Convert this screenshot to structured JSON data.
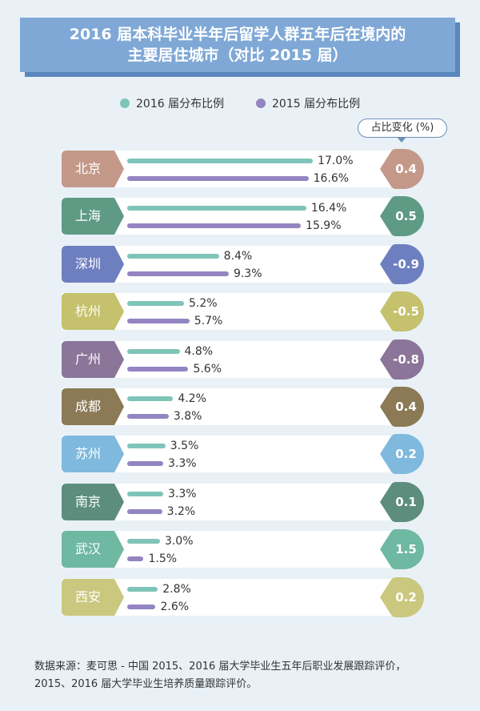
{
  "title": {
    "line1": "2016 届本科毕业半年后留学人群五年后在境内的",
    "line2": "主要居住城市（对比 2015 届）"
  },
  "change_header": "占比变化 (%)",
  "source": {
    "line1": "数据来源：麦可思 - 中国 2015、2016 届大学毕业生五年后职业发展跟踪评价，",
    "line2": "2015、2016 届大学毕业生培养质量跟踪评价。"
  },
  "colors": {
    "series_2016": "#7fc4b8",
    "series_2015": "#9385c1"
  },
  "chart_data": {
    "type": "bar",
    "orientation": "horizontal",
    "categories": [
      "北京",
      "上海",
      "深圳",
      "杭州",
      "广州",
      "成都",
      "苏州",
      "南京",
      "武汉",
      "西安"
    ],
    "series": [
      {
        "name": "2016 届分布比例",
        "values": [
          17.0,
          16.4,
          8.4,
          5.2,
          4.8,
          4.2,
          3.5,
          3.3,
          3.0,
          2.8
        ],
        "labels": [
          "17.0%",
          "16.4%",
          "8.4%",
          "5.2%",
          "4.8%",
          "4.2%",
          "3.5%",
          "3.3%",
          "3.0%",
          "2.8%"
        ]
      },
      {
        "name": "2015 届分布比例",
        "values": [
          16.6,
          15.9,
          9.3,
          5.7,
          5.6,
          3.8,
          3.3,
          3.2,
          1.5,
          2.6
        ],
        "labels": [
          "16.6%",
          "15.9%",
          "9.3%",
          "5.7%",
          "5.6%",
          "3.8%",
          "3.3%",
          "3.2%",
          "1.5%",
          "2.6%"
        ]
      }
    ],
    "changes": [
      "0.4",
      "0.5",
      "-0.9",
      "-0.5",
      "-0.8",
      "0.4",
      "0.2",
      "0.1",
      "1.5",
      "0.2"
    ],
    "category_colors": [
      "#c4998a",
      "#5f9a85",
      "#6e7fc0",
      "#c5c16c",
      "#8b7599",
      "#8b7a55",
      "#7fb9dd",
      "#5d8e7d",
      "#6fb8a2",
      "#c9c87e"
    ],
    "legend_position": "top"
  }
}
